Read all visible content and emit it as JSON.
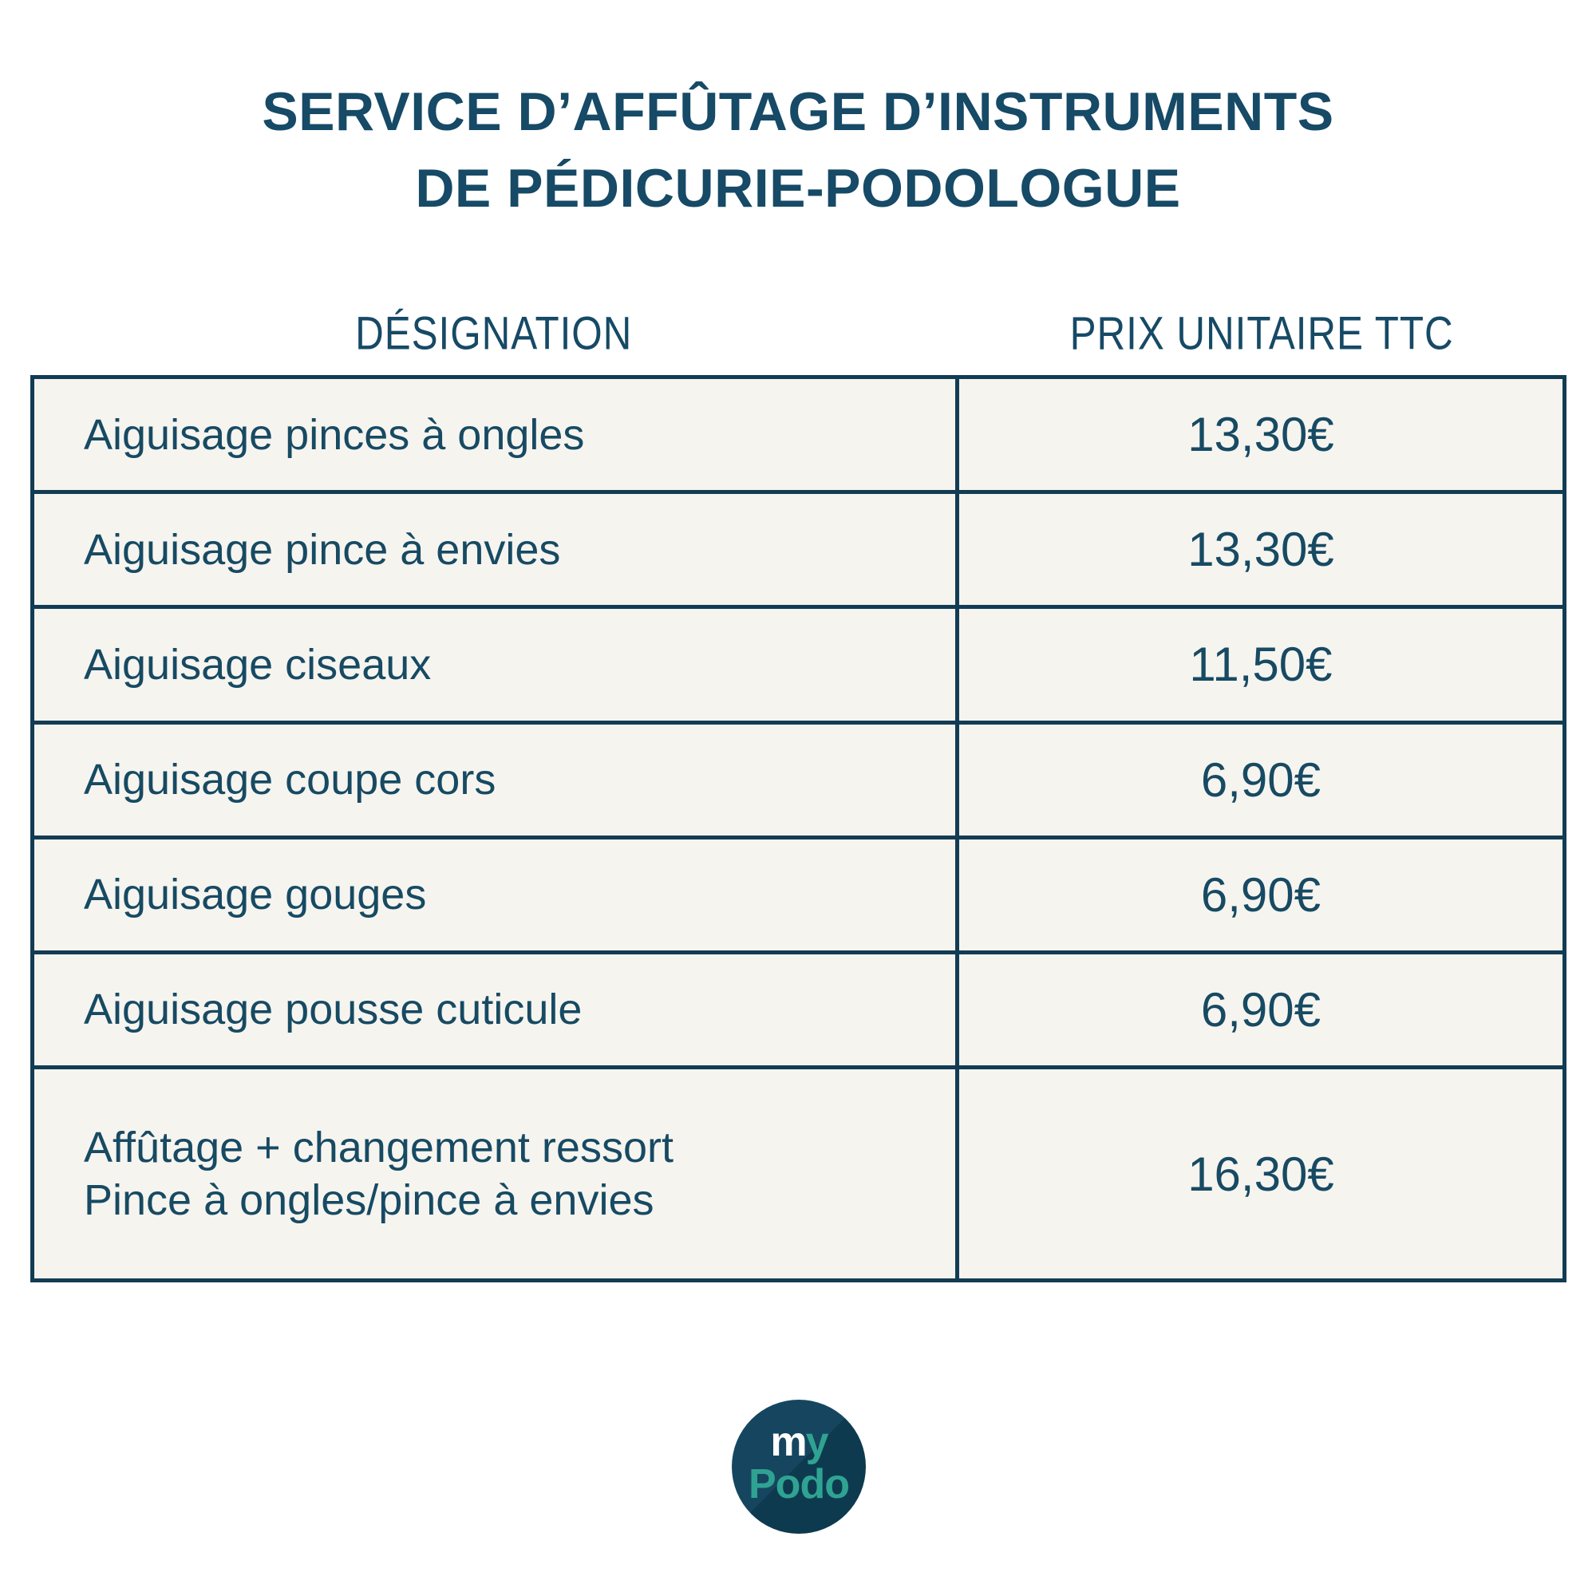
{
  "title": {
    "line1": "SERVICE D’AFFÛTAGE D’INSTRUMENTS",
    "line2": "DE PÉDICURIE-PODOLOGUE"
  },
  "table": {
    "headers": {
      "designation": "DÉSIGNATION",
      "price": "PRIX UNITAIRE TTC"
    },
    "rows": [
      {
        "designation": "Aiguisage pinces à ongles",
        "price": "13,30€"
      },
      {
        "designation": "Aiguisage pince à envies",
        "price": "13,30€"
      },
      {
        "designation": "Aiguisage ciseaux",
        "price": "11,50€"
      },
      {
        "designation": "Aiguisage coupe cors",
        "price": "6,90€"
      },
      {
        "designation": "Aiguisage gouges",
        "price": "6,90€"
      },
      {
        "designation": "Aiguisage pousse cuticule",
        "price": "6,90€"
      },
      {
        "designation": "Affûtage + changement ressort",
        "designation_line2": "Pince à ongles/pince à envies",
        "price": "16,30€"
      }
    ]
  },
  "logo": {
    "line1_part1": "m",
    "line1_part2": "y",
    "line2": "Podo"
  },
  "colors": {
    "navy_text": "#174a63",
    "border_navy": "#123c54",
    "cell_background": "#f6f4ef",
    "page_background": "#ffffff",
    "teal": "#2fa392",
    "logo_circle": "#16465f",
    "logo_shadow": "#0e3a50"
  }
}
